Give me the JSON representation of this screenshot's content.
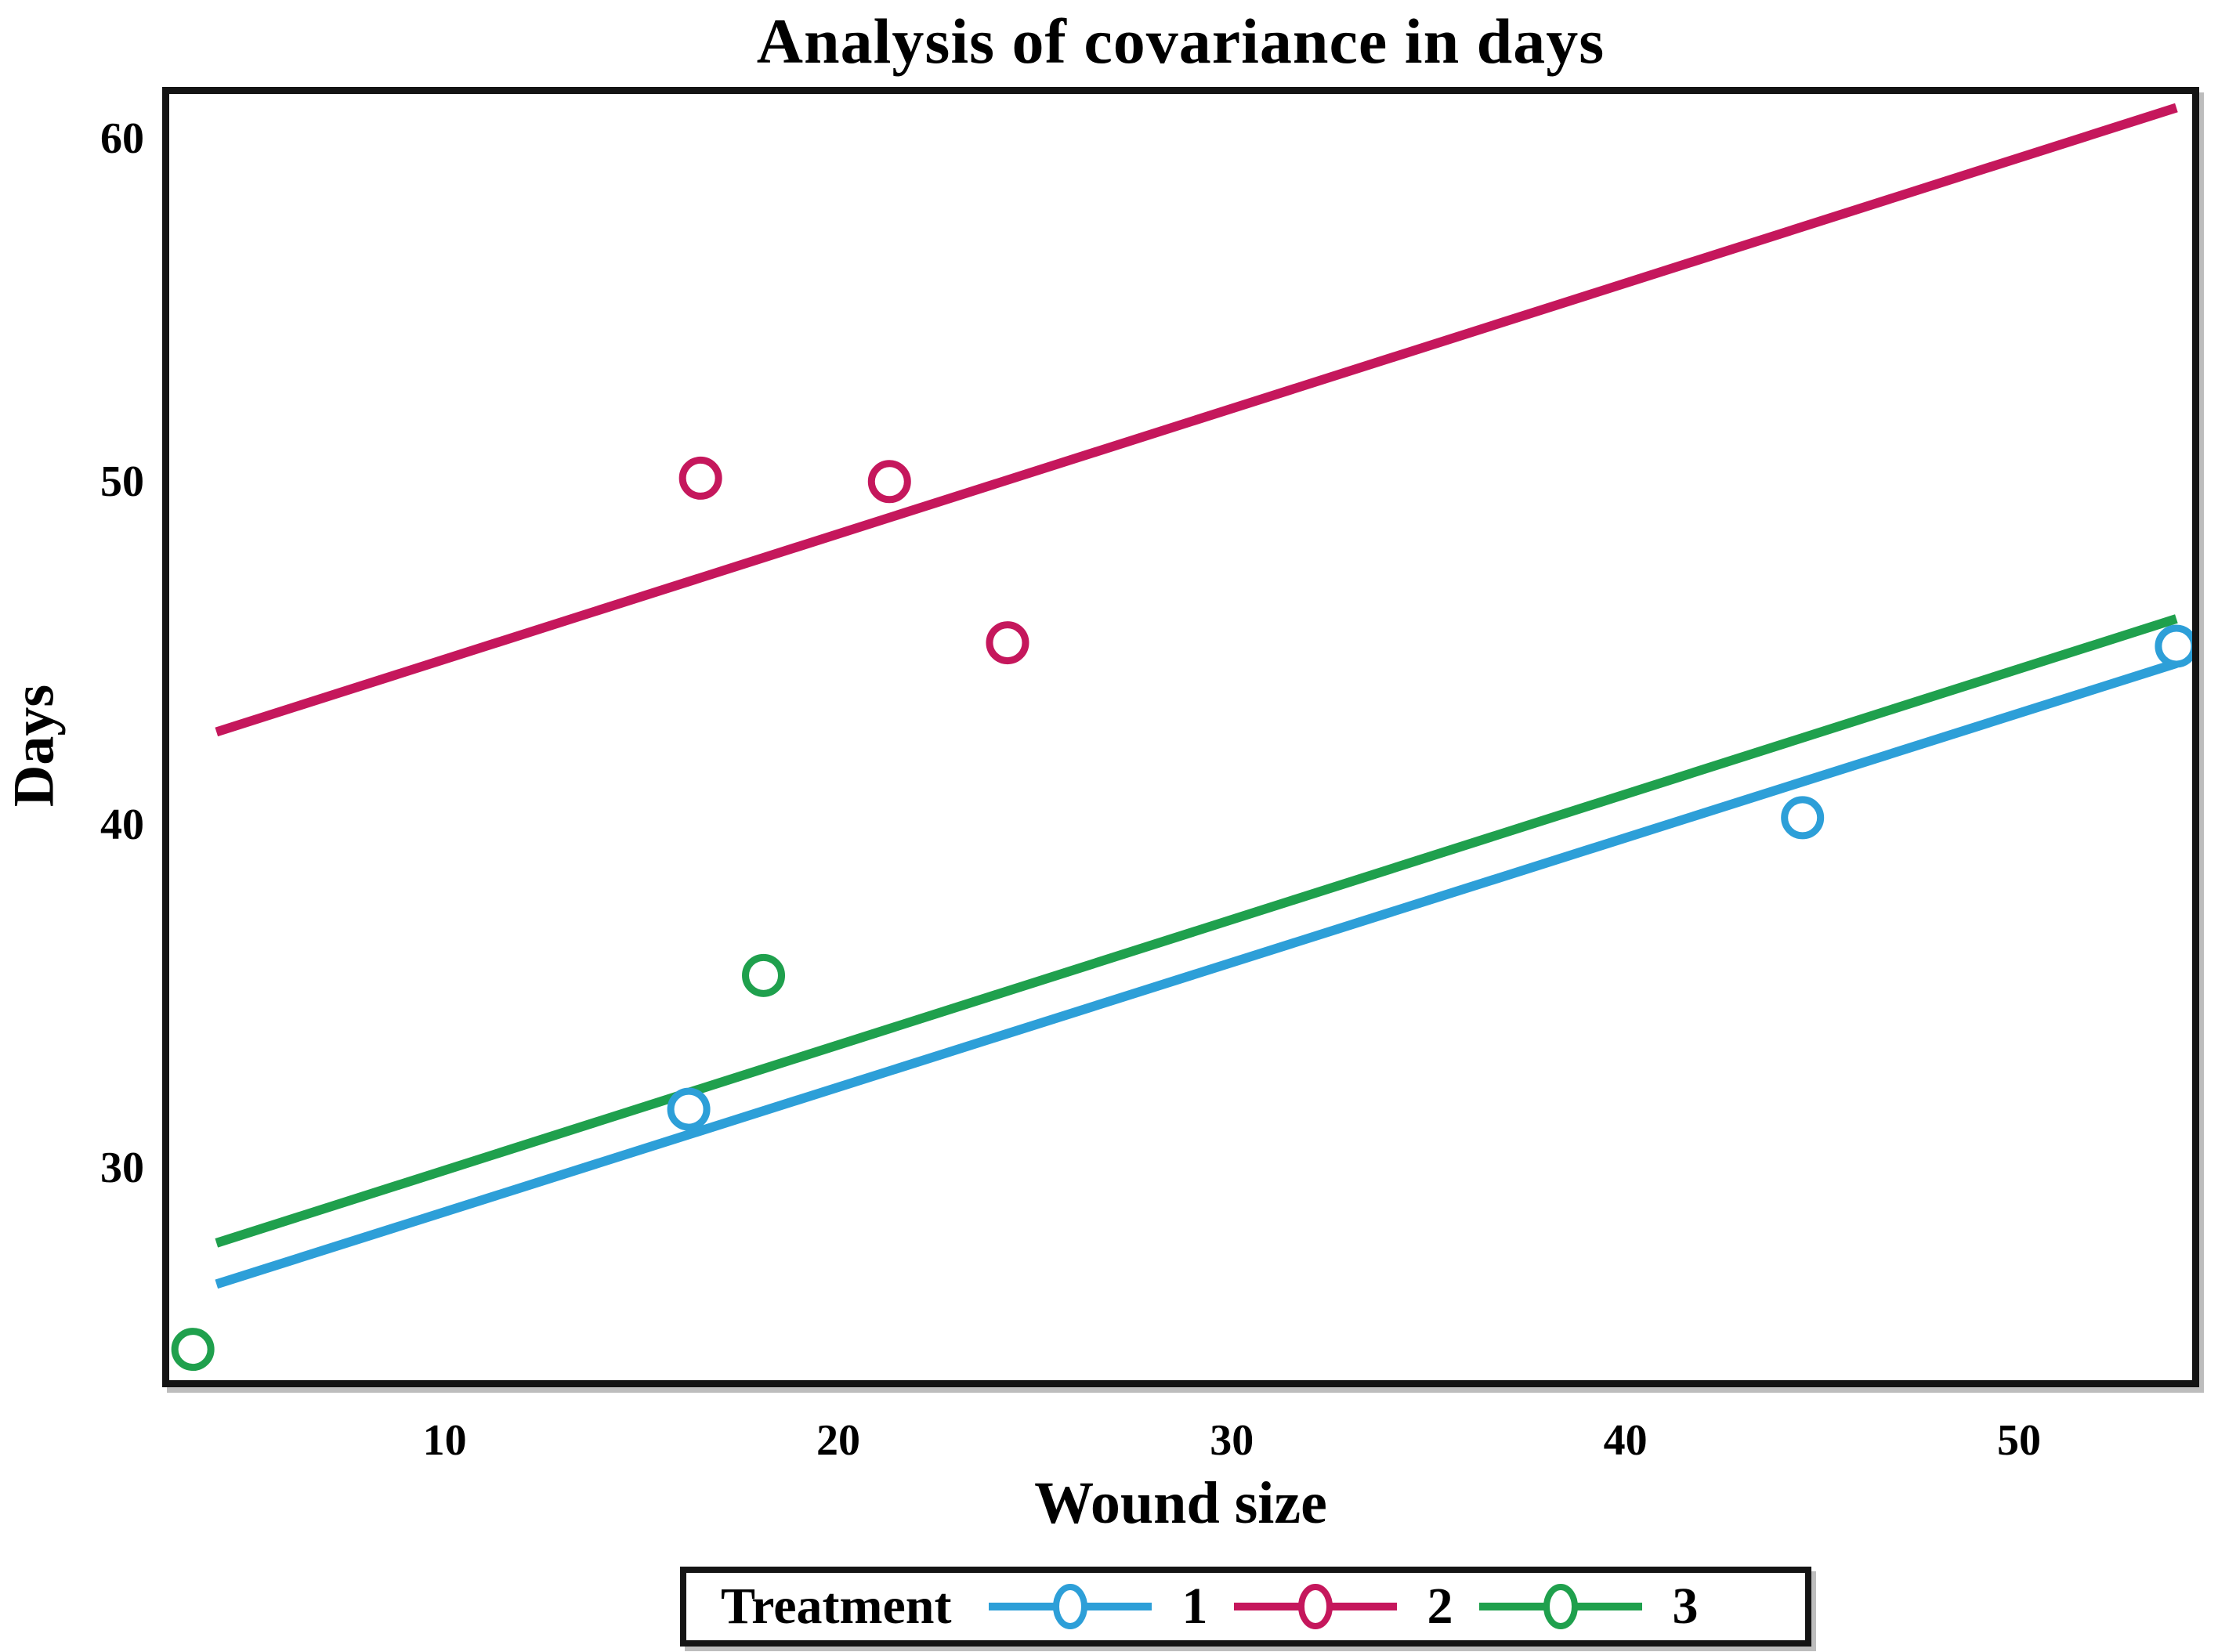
{
  "title": "Analysis of covariance in days",
  "x_axis": {
    "label": "Wound size",
    "ticks": [
      10,
      20,
      30,
      40,
      50
    ],
    "range": [
      3.0,
      54.4
    ]
  },
  "y_axis": {
    "label": "Days",
    "ticks": [
      30,
      40,
      50,
      60
    ],
    "range": [
      23.8,
      61.3
    ]
  },
  "legend": {
    "title": "Treatment",
    "position": "bottom"
  },
  "marker_style": "open-circle",
  "chart_data": {
    "type": "scatter",
    "title": "Analysis of covariance in days",
    "xlabel": "Wound size",
    "ylabel": "Days",
    "xlim": [
      3.0,
      54.4
    ],
    "ylim": [
      23.8,
      61.3
    ],
    "grid": false,
    "series": [
      {
        "name": "1",
        "color": "#2D9FD8",
        "points": [
          [
            16.2,
            31.7
          ],
          [
            44.5,
            40.2
          ],
          [
            54.0,
            45.2
          ]
        ],
        "fit_line": {
          "x": [
            4.2,
            54.0
          ],
          "y": [
            26.6,
            44.7
          ]
        }
      },
      {
        "name": "2",
        "color": "#C5175C",
        "points": [
          [
            16.5,
            50.1
          ],
          [
            21.3,
            50.0
          ],
          [
            24.3,
            45.3
          ]
        ],
        "fit_line": {
          "x": [
            4.2,
            54.0
          ],
          "y": [
            42.7,
            60.9
          ]
        }
      },
      {
        "name": "3",
        "color": "#1FA04D",
        "points": [
          [
            3.6,
            24.7
          ],
          [
            18.1,
            35.6
          ]
        ],
        "fit_line": {
          "x": [
            4.2,
            54.0
          ],
          "y": [
            27.8,
            46.0
          ]
        }
      }
    ]
  }
}
